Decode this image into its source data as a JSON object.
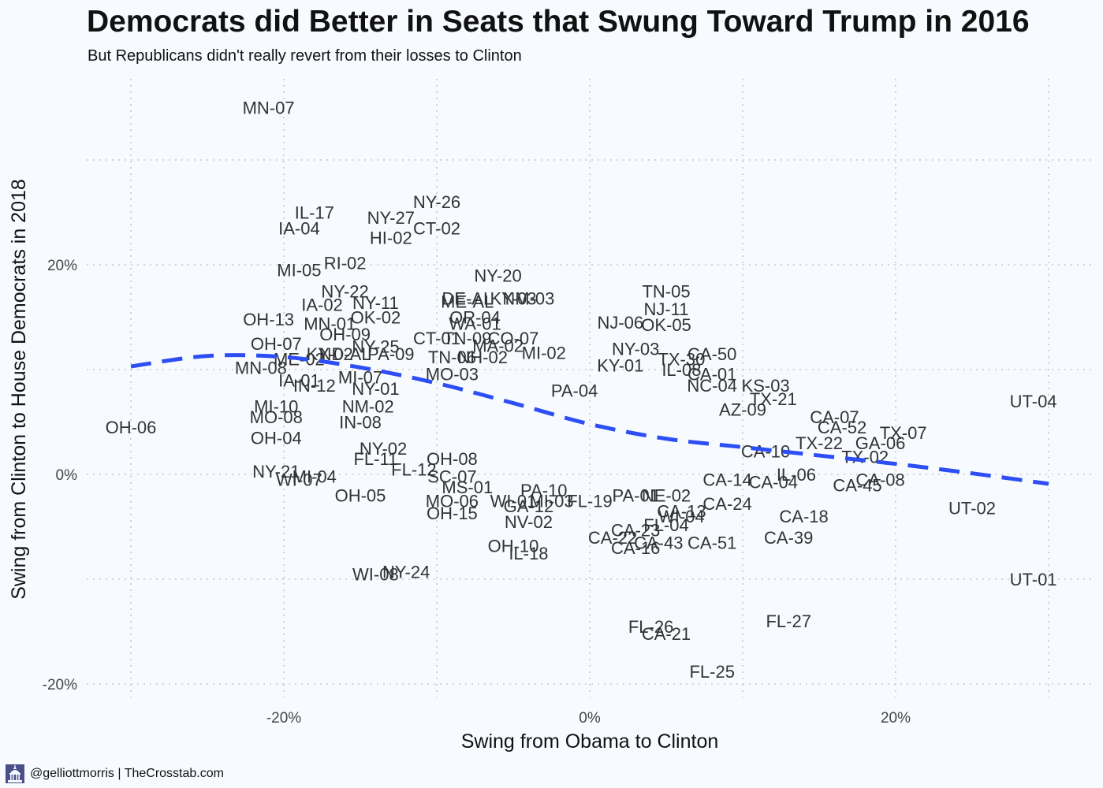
{
  "title": "Democrats did Better in Seats that Swung Toward Trump in 2016",
  "subtitle": "But Republicans didn't really revert from their losses to Clinton",
  "footer": {
    "credit": "@gelliottmorris | TheCrosstab.com",
    "logo_icon": "capitol-building-icon"
  },
  "colors": {
    "background": "#f7fbff",
    "trend": "#2d4ef5",
    "grid": "#c8c8c8",
    "label": "#333333"
  },
  "chart_data": {
    "type": "scatter",
    "title": "Democrats did Better in Seats that Swung Toward Trump in 2016",
    "subtitle": "But Republicans didn't really revert from their losses to Clinton",
    "xlabel": "Swing from Obama to Clinton",
    "ylabel": "Swing from Clinton to House Democrats in 2018",
    "xlim": [
      -33,
      32
    ],
    "ylim": [
      -21.5,
      40
    ],
    "x_ticks": [
      -20,
      0,
      20
    ],
    "y_ticks": [
      -20,
      0,
      20
    ],
    "x_tick_labels": [
      "-20%",
      "0%",
      "20%"
    ],
    "y_tick_labels": [
      "-20%",
      "0%",
      "20%"
    ],
    "grid": true,
    "points": [
      {
        "label": "MN-07",
        "x": -21,
        "y": 35.0
      },
      {
        "label": "NY-26",
        "x": -10,
        "y": 26.0
      },
      {
        "label": "IL-17",
        "x": -18,
        "y": 25.0
      },
      {
        "label": "NY-27",
        "x": -13,
        "y": 24.5
      },
      {
        "label": "IA-04",
        "x": -19,
        "y": 23.5
      },
      {
        "label": "CT-02",
        "x": -10,
        "y": 23.5
      },
      {
        "label": "HI-02",
        "x": -13,
        "y": 22.6
      },
      {
        "label": "RI-02",
        "x": -16,
        "y": 20.2
      },
      {
        "label": "MI-05",
        "x": -19,
        "y": 19.5
      },
      {
        "label": "NY-20",
        "x": -6,
        "y": 19.0
      },
      {
        "label": "NY-22",
        "x": -16,
        "y": 17.5
      },
      {
        "label": "TN-05",
        "x": 5,
        "y": 17.5
      },
      {
        "label": "DE-AL",
        "x": -8,
        "y": 16.8
      },
      {
        "label": "ME-AL",
        "x": -8,
        "y": 16.5
      },
      {
        "label": "KY-03",
        "x": -5,
        "y": 16.8
      },
      {
        "label": "NM-03",
        "x": -4,
        "y": 16.8
      },
      {
        "label": "IA-02",
        "x": -17.5,
        "y": 16.2
      },
      {
        "label": "NY-11",
        "x": -14,
        "y": 16.4
      },
      {
        "label": "NJ-11",
        "x": 5,
        "y": 15.8
      },
      {
        "label": "OH-13",
        "x": -21,
        "y": 14.8
      },
      {
        "label": "OK-02",
        "x": -14,
        "y": 15.0
      },
      {
        "label": "OR-04",
        "x": -7.5,
        "y": 15.0
      },
      {
        "label": "MN-01",
        "x": -17,
        "y": 14.4
      },
      {
        "label": "WA-01",
        "x": -7.5,
        "y": 14.4
      },
      {
        "label": "NJ-06",
        "x": 2,
        "y": 14.5
      },
      {
        "label": "OK-05",
        "x": 5,
        "y": 14.3
      },
      {
        "label": "OH-09",
        "x": -16,
        "y": 13.4
      },
      {
        "label": "CT-01",
        "x": -10,
        "y": 13.0
      },
      {
        "label": "TN-09",
        "x": -8,
        "y": 13.0
      },
      {
        "label": "CO-07",
        "x": -5,
        "y": 13.0
      },
      {
        "label": "OH-07",
        "x": -20.5,
        "y": 12.5
      },
      {
        "label": "NY-25",
        "x": -14,
        "y": 12.2
      },
      {
        "label": "MA-02",
        "x": -6,
        "y": 12.3
      },
      {
        "label": "NY-03",
        "x": 3,
        "y": 12.0
      },
      {
        "label": "KY-02",
        "x": -17,
        "y": 11.5
      },
      {
        "label": "ME-02",
        "x": -19,
        "y": 11.0
      },
      {
        "label": "ND-AL",
        "x": -16,
        "y": 11.5
      },
      {
        "label": "PA-09",
        "x": -13,
        "y": 11.5
      },
      {
        "label": "TN-06",
        "x": -9,
        "y": 11.2
      },
      {
        "label": "NH-02",
        "x": -7,
        "y": 11.2
      },
      {
        "label": "MI-02",
        "x": -3,
        "y": 11.6
      },
      {
        "label": "CA-50",
        "x": 8,
        "y": 11.5
      },
      {
        "label": "TX-30",
        "x": 6,
        "y": 11.0
      },
      {
        "label": "MN-08",
        "x": -21.5,
        "y": 10.2
      },
      {
        "label": "MO-03",
        "x": -9,
        "y": 9.6
      },
      {
        "label": "KY-01",
        "x": 2,
        "y": 10.4
      },
      {
        "label": "IL-08",
        "x": 6,
        "y": 10.0
      },
      {
        "label": "CA-01",
        "x": 8,
        "y": 9.6
      },
      {
        "label": "IA-01",
        "x": -19,
        "y": 9.0
      },
      {
        "label": "MI-07",
        "x": -15,
        "y": 9.3
      },
      {
        "label": "IN-12",
        "x": -18,
        "y": 8.5
      },
      {
        "label": "NC-04",
        "x": 8,
        "y": 8.5
      },
      {
        "label": "KS-03",
        "x": 11.5,
        "y": 8.5
      },
      {
        "label": "PA-04",
        "x": -1,
        "y": 8.0
      },
      {
        "label": "NY-01",
        "x": -14,
        "y": 8.2
      },
      {
        "label": "TX-21",
        "x": 12,
        "y": 7.2
      },
      {
        "label": "MI-10",
        "x": -20.5,
        "y": 6.5
      },
      {
        "label": "NM-02",
        "x": -14.5,
        "y": 6.5
      },
      {
        "label": "AZ-09",
        "x": 10,
        "y": 6.2
      },
      {
        "label": "CA-07",
        "x": 16,
        "y": 5.5
      },
      {
        "label": "MO-08",
        "x": -20.5,
        "y": 5.5
      },
      {
        "label": "IN-08",
        "x": -15,
        "y": 5.0
      },
      {
        "label": "CA-52",
        "x": 16.5,
        "y": 4.5
      },
      {
        "label": "TX-07",
        "x": 20.5,
        "y": 4.0
      },
      {
        "label": "UT-04",
        "x": 29,
        "y": 7.0
      },
      {
        "label": "OH-06",
        "x": -30,
        "y": 4.5
      },
      {
        "label": "OH-04",
        "x": -20.5,
        "y": 3.5
      },
      {
        "label": "NY-02",
        "x": -13.5,
        "y": 2.5
      },
      {
        "label": "TX-22",
        "x": 15,
        "y": 3.0
      },
      {
        "label": "GA-06",
        "x": 19,
        "y": 3.0
      },
      {
        "label": "TX-02",
        "x": 18,
        "y": 1.7
      },
      {
        "label": "FL-11",
        "x": -14,
        "y": 1.5
      },
      {
        "label": "OH-08",
        "x": -9,
        "y": 1.5
      },
      {
        "label": "FL-12",
        "x": -11.5,
        "y": 0.5
      },
      {
        "label": "CA-10",
        "x": 11.5,
        "y": 2.2
      },
      {
        "label": "IL-06",
        "x": 13.5,
        "y": 0.0
      },
      {
        "label": "NY-21",
        "x": -20.5,
        "y": 0.3
      },
      {
        "label": "WI-07",
        "x": -19,
        "y": -0.5
      },
      {
        "label": "MI-04",
        "x": -18,
        "y": -0.2
      },
      {
        "label": "SC-07",
        "x": -9,
        "y": -0.2
      },
      {
        "label": "CA-14",
        "x": 9,
        "y": -0.5
      },
      {
        "label": "CA-04",
        "x": 12,
        "y": -0.7
      },
      {
        "label": "CA-45",
        "x": 17.5,
        "y": -1.0
      },
      {
        "label": "CA-08",
        "x": 19,
        "y": -0.5
      },
      {
        "label": "MS-01",
        "x": -8,
        "y": -1.2
      },
      {
        "label": "PA-10",
        "x": -3,
        "y": -1.5
      },
      {
        "label": "OH-05",
        "x": -15,
        "y": -2.0
      },
      {
        "label": "MO-06",
        "x": -9,
        "y": -2.5
      },
      {
        "label": "WI-01",
        "x": -5,
        "y": -2.5
      },
      {
        "label": "MI-03",
        "x": -2.5,
        "y": -2.5
      },
      {
        "label": "PA-01",
        "x": 3,
        "y": -2.0
      },
      {
        "label": "CA-24",
        "x": 9,
        "y": -2.8
      },
      {
        "label": "GA-12",
        "x": -4,
        "y": -3.0
      },
      {
        "label": "FL-19",
        "x": 0,
        "y": -2.5
      },
      {
        "label": "NE-02",
        "x": 5,
        "y": -2.0
      },
      {
        "label": "CA-13",
        "x": 6,
        "y": -3.5
      },
      {
        "label": "OH-15",
        "x": -9,
        "y": -3.7
      },
      {
        "label": "WI-04",
        "x": 6,
        "y": -4.0
      },
      {
        "label": "UT-02",
        "x": 25,
        "y": -3.2
      },
      {
        "label": "CA-18",
        "x": 14,
        "y": -4.0
      },
      {
        "label": "NV-02",
        "x": -4,
        "y": -4.5
      },
      {
        "label": "FL-04",
        "x": 5,
        "y": -4.8
      },
      {
        "label": "CA-23",
        "x": 3,
        "y": -5.3
      },
      {
        "label": "CA-22",
        "x": 1.5,
        "y": -6.0
      },
      {
        "label": "CA-39",
        "x": 13,
        "y": -6.0
      },
      {
        "label": "OH-10",
        "x": -5,
        "y": -6.8
      },
      {
        "label": "CA-43",
        "x": 4.5,
        "y": -6.5
      },
      {
        "label": "CA-16",
        "x": 3,
        "y": -7.0
      },
      {
        "label": "CA-51",
        "x": 8,
        "y": -6.5
      },
      {
        "label": "IL-18",
        "x": -4,
        "y": -7.5
      },
      {
        "label": "WI-08",
        "x": -14,
        "y": -9.5
      },
      {
        "label": "NY-24",
        "x": -12,
        "y": -9.3
      },
      {
        "label": "UT-01",
        "x": 29,
        "y": -10.0
      },
      {
        "label": "FL-27",
        "x": 13,
        "y": -14.0
      },
      {
        "label": "FL-26",
        "x": 4,
        "y": -14.5
      },
      {
        "label": "CA-21",
        "x": 5,
        "y": -15.2
      },
      {
        "label": "FL-25",
        "x": 8,
        "y": -18.8
      }
    ],
    "trend_line": {
      "style": "dashed",
      "x": [
        -30,
        -25,
        -20,
        -15,
        -10,
        -5,
        0,
        5,
        10,
        15,
        20,
        25,
        30
      ],
      "y": [
        10.3,
        11.3,
        11.2,
        10.2,
        8.7,
        6.8,
        4.8,
        3.4,
        2.6,
        1.8,
        1.0,
        0.1,
        -0.9
      ]
    }
  }
}
